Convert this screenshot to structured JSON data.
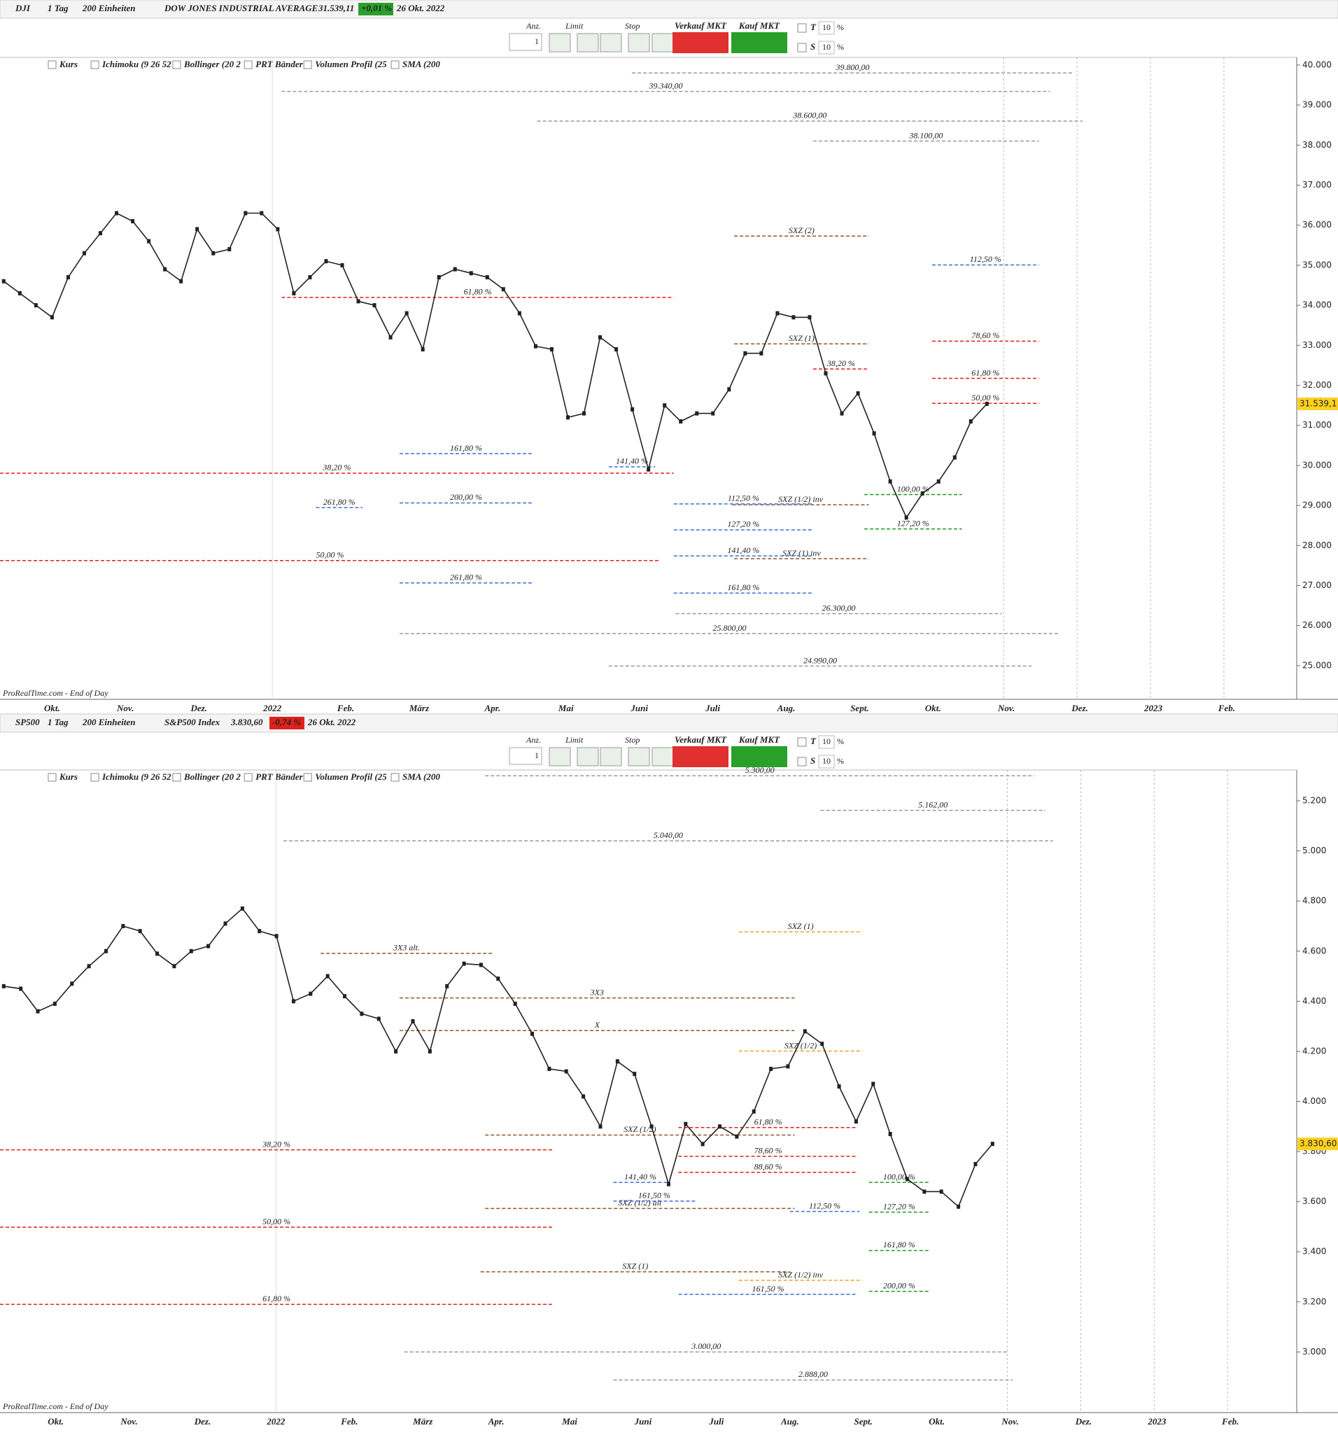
{
  "windows": [
    {
      "symbol": "DJI",
      "interval": "1 Tag",
      "units": "200 Einheiten",
      "name": "DOW JONES INDUSTRIAL AVERAGE",
      "change": "+0,01 %",
      "date": "26 Okt. 2022"
    },
    {
      "symbol": "SP500",
      "interval": "1 Tag",
      "units": "200 Einheiten",
      "name": "S&P500 Index",
      "change": "-0,74 %",
      "date": "26 Okt. 2022"
    }
  ],
  "toolbar": {
    "qty_label": "Anz.",
    "qty": 1,
    "limit": "Limit",
    "stop": "Stop",
    "sell": "Verkauf MKT",
    "buy": "Kauf MKT",
    "t": "T",
    "t_val": 10,
    "s": "S",
    "s_val": 10,
    "pct": "%"
  },
  "indicators": [
    "Kurs",
    "Ichimoku (9 26 52",
    "Bollinger (20 2",
    "PRT Bänder",
    "Volumen Profil (25",
    "SMA (200"
  ],
  "footer": "ProRealTime.com - End of Day",
  "chart_data": [
    {
      "type": "line",
      "color": "#222222",
      "month_labels": [
        "Okt.",
        "Nov.",
        "Dez.",
        "2022",
        "Feb.",
        "März",
        "Apr.",
        "Mai",
        "Juni",
        "Juli",
        "Aug.",
        "Sept.",
        "Okt.",
        "Nov.",
        "Dez.",
        "2023",
        "Feb."
      ],
      "values": [
        34600,
        34300,
        34000,
        33700,
        34700,
        35300,
        35800,
        36300,
        36100,
        35600,
        34900,
        34600,
        35900,
        35300,
        35400,
        36300,
        36300,
        35900,
        34300,
        34700,
        35100,
        35000,
        34100,
        34000,
        33200,
        33800,
        32900,
        34700,
        34900,
        34800,
        34700,
        34400,
        33800,
        32977,
        32900,
        31200,
        31300,
        33200,
        32900,
        31400,
        29900,
        31500,
        31100,
        31300,
        31300,
        31900,
        32800,
        32800,
        33800,
        33700,
        33700,
        32300,
        31300,
        31800,
        30800,
        29600,
        28700,
        29300,
        29600,
        30200,
        31100,
        31539.11
      ],
      "last": {
        "value": 31539.11,
        "label": "31.539,11"
      },
      "ylim": [
        24160,
        40190
      ],
      "yticks": [
        {
          "value": 25000,
          "label": "25.000"
        },
        {
          "value": 26000,
          "label": "26.000"
        },
        {
          "value": 27000,
          "label": "27.000"
        },
        {
          "value": 28000,
          "label": "28.000"
        },
        {
          "value": 29000,
          "label": "29.000"
        },
        {
          "value": 30000,
          "label": "30.000"
        },
        {
          "value": 31000,
          "label": "31.000"
        },
        {
          "value": 32000,
          "label": "32.000"
        },
        {
          "value": 33000,
          "label": "33.000"
        },
        {
          "value": 34000,
          "label": "34.000"
        },
        {
          "value": 35000,
          "label": "35.000"
        },
        {
          "value": 36000,
          "label": "36.000"
        },
        {
          "value": 37000,
          "label": "37.000"
        },
        {
          "value": 38000,
          "label": "38.000"
        },
        {
          "value": 39000,
          "label": "39.000"
        },
        {
          "value": 40000,
          "label": "40.000"
        }
      ],
      "levels": [
        {
          "label": "61,80 %",
          "value": 34196,
          "color": "#e0201c"
        },
        {
          "label": "38,20 %",
          "value": 29807,
          "color": "#e0201c"
        },
        {
          "label": "50,00 %",
          "value": 27625,
          "color": "#e0201c"
        },
        {
          "label": "161,80 %",
          "value": 30295,
          "color": "#3c6fd8"
        },
        {
          "label": "200,00 %",
          "value": 29064,
          "color": "#3c6fd8"
        },
        {
          "label": "261,80 %",
          "value": 28948,
          "color": "#3c6fd8"
        },
        {
          "label": "261,80 %",
          "value": 27067,
          "color": "#3c6fd8"
        },
        {
          "label": "141,40 %",
          "value": 29965,
          "color": "#3c6fd8"
        },
        {
          "label": "SXZ (2)",
          "value": 35728,
          "color": "#8b5a2b"
        },
        {
          "label": "SXZ (1)",
          "value": 33035,
          "color": "#8b5a2b"
        },
        {
          "label": "SXZ (1/2) inv",
          "value": 29018,
          "color": "#8b5a2b"
        },
        {
          "label": "SXZ (1) inv",
          "value": 27671,
          "color": "#8b5a2b"
        },
        {
          "label": "112,50 %",
          "value": 35008,
          "color": "#3c6fd8"
        },
        {
          "label": "78,60 %",
          "value": 33104,
          "color": "#e0201c"
        },
        {
          "label": "61,80 %",
          "value": 32175,
          "color": "#e0201c"
        },
        {
          "label": "50,00 %",
          "value": 31549,
          "color": "#e0201c"
        },
        {
          "label": "100,00 %",
          "value": 29273,
          "color": "#1e9a1e"
        },
        {
          "label": "127,20 %",
          "value": 28414,
          "color": "#1e9a1e"
        },
        {
          "label": "112,50 %",
          "value": 29040,
          "color": "#3c6fd8"
        },
        {
          "label": "127,20 %",
          "value": 28391,
          "color": "#3c6fd8"
        },
        {
          "label": "141,40 %",
          "value": 27741,
          "color": "#3c6fd8"
        },
        {
          "label": "161,80 %",
          "value": 26812,
          "color": "#3c6fd8"
        },
        {
          "label": "39.800,00",
          "value": 39800,
          "color": "#999999"
        },
        {
          "label": "39.340,00",
          "value": 39340,
          "color": "#999999"
        },
        {
          "label": "38.600,00",
          "value": 38600,
          "color": "#999999"
        },
        {
          "label": "38.100,00",
          "value": 38100,
          "color": "#999999"
        },
        {
          "label": "26.300,00",
          "value": 26300,
          "color": "#999999"
        },
        {
          "label": "25.800,00",
          "value": 25800,
          "color": "#999999"
        },
        {
          "label": "24.990,00",
          "value": 24990,
          "color": "#999999"
        },
        {
          "label": "38,20 %",
          "value": 32408,
          "color": "#e0201c"
        }
      ]
    },
    {
      "type": "line",
      "color": "#222222",
      "month_labels": [
        "Okt.",
        "Nov.",
        "Dez.",
        "2022",
        "Feb.",
        "März",
        "Apr.",
        "Mai",
        "Juni",
        "Juli",
        "Aug.",
        "Sept.",
        "Okt.",
        "Nov.",
        "Dez.",
        "2023",
        "Feb."
      ],
      "values": [
        4460,
        4450,
        4360,
        4390,
        4470,
        4540,
        4600,
        4700,
        4680,
        4590,
        4540,
        4600,
        4620,
        4710,
        4770,
        4680,
        4660,
        4400,
        4430,
        4500,
        4420,
        4350,
        4330,
        4200,
        4320,
        4200,
        4460,
        4550,
        4545,
        4490,
        4390,
        4270,
        4130,
        4120,
        4020,
        3900,
        4160,
        4110,
        3900,
        3670,
        3910,
        3830,
        3900,
        3860,
        3960,
        4130,
        4140,
        4280,
        4230,
        4060,
        3920,
        4070,
        3870,
        3690,
        3640,
        3640,
        3580,
        3750,
        3830.6
      ],
      "last": {
        "value": 3830.6,
        "label": "3.830,60"
      },
      "ylim": [
        2758,
        5323
      ],
      "yticks": [
        {
          "value": 3000,
          "label": "3.000"
        },
        {
          "value": 3200,
          "label": "3.200"
        },
        {
          "value": 3400,
          "label": "3.400"
        },
        {
          "value": 3600,
          "label": "3.600"
        },
        {
          "value": 3800,
          "label": "3.800"
        },
        {
          "value": 4000,
          "label": "4.000"
        },
        {
          "value": 4200,
          "label": "4.200"
        },
        {
          "value": 4400,
          "label": "4.400"
        },
        {
          "value": 4600,
          "label": "4.600"
        },
        {
          "value": 4800,
          "label": "4.800"
        },
        {
          "value": 5000,
          "label": "5.000"
        },
        {
          "value": 5200,
          "label": "5.200"
        }
      ],
      "levels": [
        {
          "label": "38,20 %",
          "value": 3807,
          "color": "#e0201c"
        },
        {
          "label": "50,00 %",
          "value": 3498,
          "color": "#e0201c"
        },
        {
          "label": "61,80 %",
          "value": 3190,
          "color": "#e0201c"
        },
        {
          "label": "5.162,00",
          "value": 5162,
          "color": "#999999"
        },
        {
          "label": "5.040,00",
          "value": 5040,
          "color": "#999999"
        },
        {
          "label": "3.000,00",
          "value": 3000,
          "color": "#999999"
        },
        {
          "label": "2.888,00",
          "value": 2888,
          "color": "#999999"
        },
        {
          "label": "5.300,00",
          "value": 5300,
          "color": "#999999"
        },
        {
          "label": "SXZ (1)",
          "value": 4677,
          "color": "#e8a52a"
        },
        {
          "label": "SXZ (1/2)",
          "value": 4201,
          "color": "#e8a52a"
        },
        {
          "label": "3X3 alt.",
          "value": 4591,
          "color": "#8b5a2b"
        },
        {
          "label": "SXZ (1/2)",
          "value": 3866,
          "color": "#8b5a2b"
        },
        {
          "label": "SXZ (1/2) alt",
          "value": 3573,
          "color": "#8b5a2b"
        },
        {
          "label": "SXZ (1)",
          "value": 3320,
          "color": "#8b5a2b"
        },
        {
          "label": "SXZ (1/2) inv",
          "value": 3286,
          "color": "#e8a52a"
        },
        {
          "label": "100,00 %",
          "value": 3677,
          "color": "#1e9a1e"
        },
        {
          "label": "127,20 %",
          "value": 3558,
          "color": "#1e9a1e"
        },
        {
          "label": "161,80 %",
          "value": 3405,
          "color": "#1e9a1e"
        },
        {
          "label": "200,00 %",
          "value": 3242,
          "color": "#1e9a1e"
        },
        {
          "label": "61,80 %",
          "value": 3896,
          "color": "#e0201c"
        },
        {
          "label": "78,60 %",
          "value": 3781,
          "color": "#e0201c"
        },
        {
          "label": "88,60 %",
          "value": 3717,
          "color": "#e0201c"
        },
        {
          "label": "141,40 %",
          "value": 3677,
          "color": "#3c6fd8"
        },
        {
          "label": "161,50 %",
          "value": 3602,
          "color": "#3c6fd8"
        },
        {
          "label": "112,50 %",
          "value": 3561,
          "color": "#3c6fd8"
        },
        {
          "label": "161,50 %",
          "value": 3230,
          "color": "#3c6fd8"
        },
        {
          "label": "3X3",
          "value": 4413,
          "color": "#8b5a2b"
        },
        {
          "label": "X",
          "value": 4283,
          "color": "#8b5a2b"
        }
      ]
    }
  ]
}
